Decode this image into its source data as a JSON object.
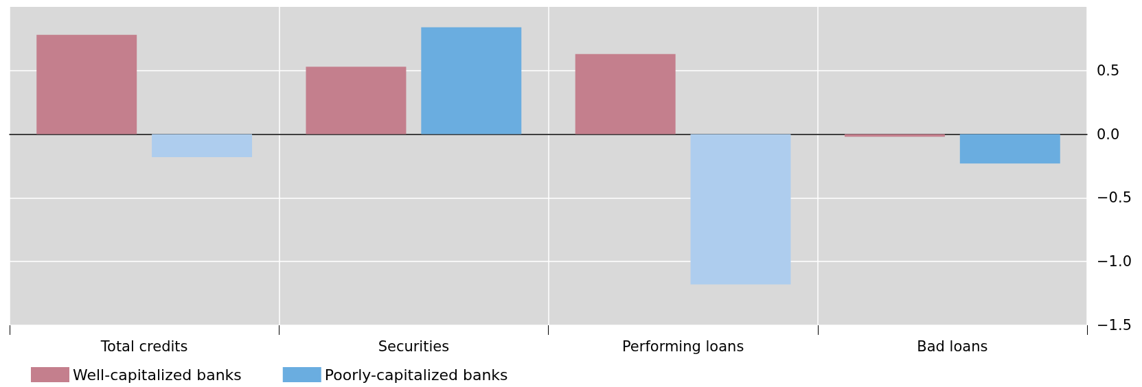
{
  "chart_data": {
    "type": "bar",
    "categories": [
      "Total credits",
      "Securities",
      "Performing loans",
      "Bad loans"
    ],
    "series": [
      {
        "name": "Well-capitalized banks",
        "color": "#c47f8d",
        "values": [
          0.78,
          0.53,
          0.63,
          -0.02
        ]
      },
      {
        "name": "Poorly-capitalized banks",
        "color": "#6aade0",
        "colors": [
          "#aecdee",
          "#6aade0",
          "#aecdee",
          "#6aade0"
        ],
        "values": [
          -0.18,
          0.84,
          -1.18,
          -0.23
        ]
      }
    ],
    "ylim": [
      -1.5,
      1.0
    ],
    "yticks": [
      {
        "value": -1.5,
        "label": "−1.5"
      },
      {
        "value": -1.0,
        "label": "−1.0"
      },
      {
        "value": -0.5,
        "label": "−0.5"
      },
      {
        "value": 0,
        "label": "0.0"
      },
      {
        "value": 0.5,
        "label": "0.5"
      }
    ],
    "grid": true,
    "legend": "bottom left"
  }
}
